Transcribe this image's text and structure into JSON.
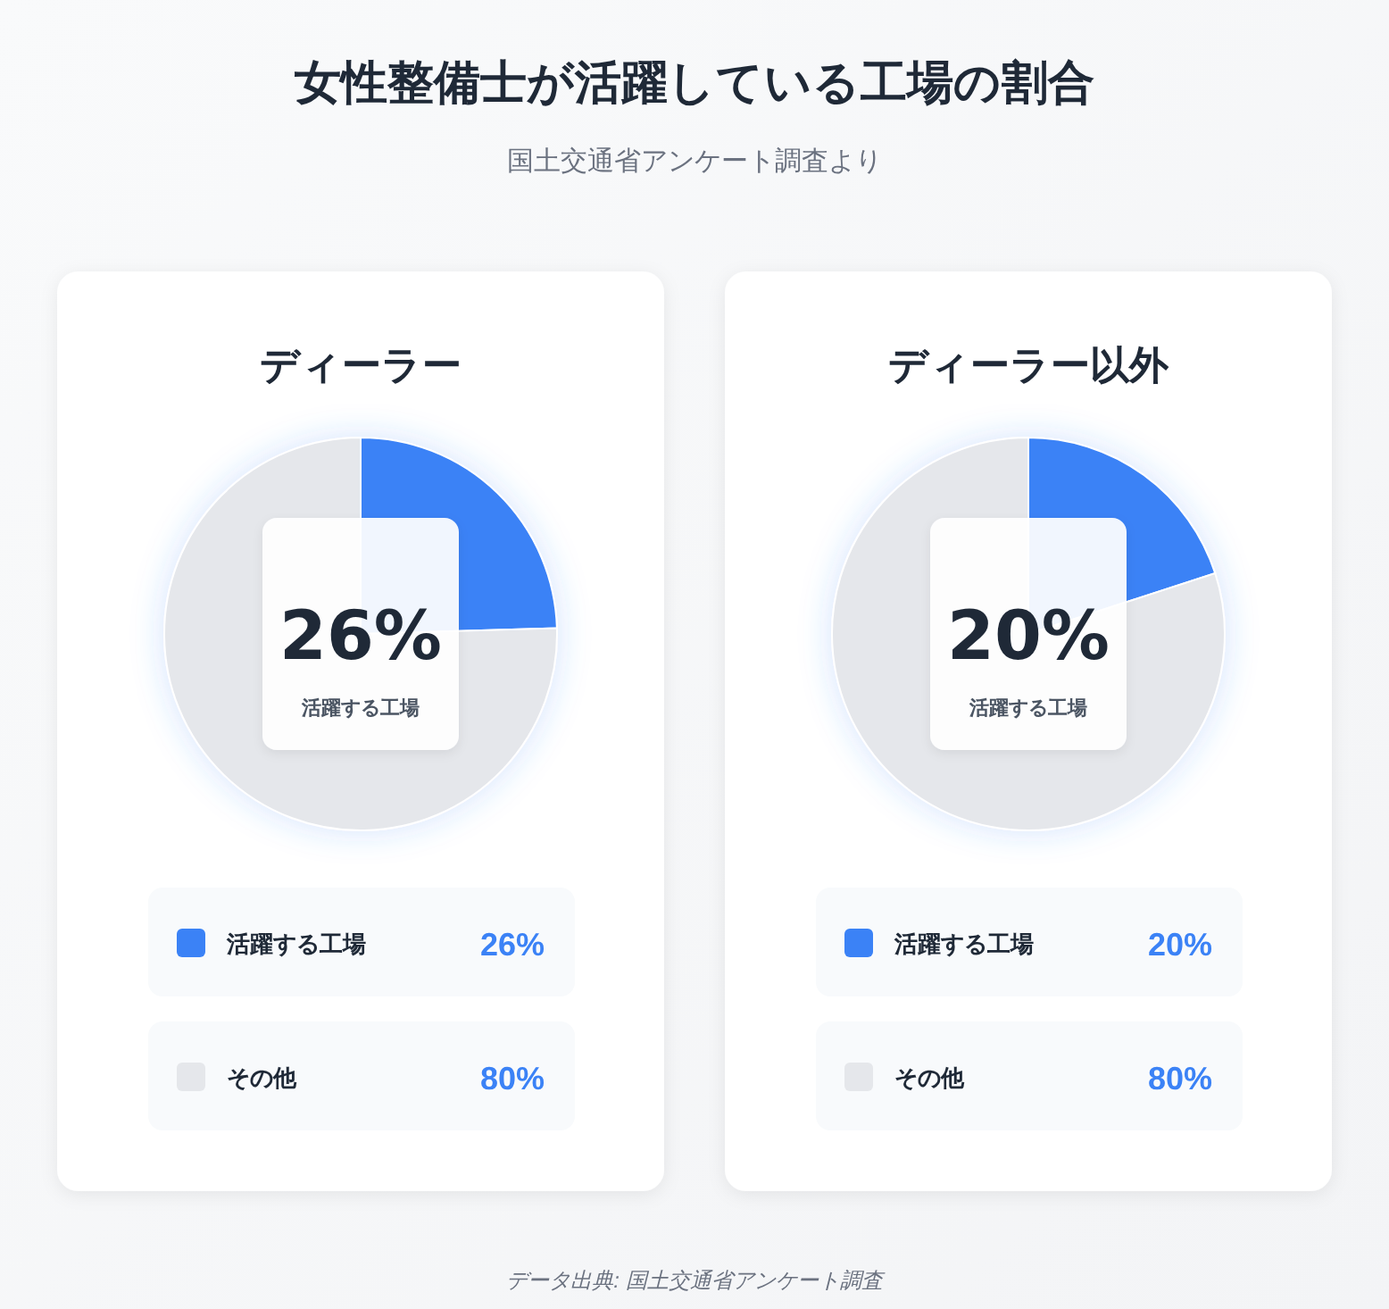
{
  "chart_data": [
    {
      "type": "other",
      "title": "女性整備士が活躍している工場の割合",
      "subtitle": "国土交通省アンケート調査より"
    },
    {
      "type": "pie",
      "title": "ディーラー",
      "categories": [
        "活躍する工場",
        "その他"
      ],
      "values": [
        26,
        80
      ],
      "value_labels": [
        "26%",
        "80%"
      ],
      "colors": [
        "#3b82f6",
        "#e5e7eb"
      ],
      "legend": "bottom"
    },
    {
      "type": "pie",
      "title": "ディーラー以外",
      "categories": [
        "活躍する工場",
        "その他"
      ],
      "values": [
        20,
        80
      ],
      "value_labels": [
        "20%",
        "80%"
      ],
      "colors": [
        "#3b82f6",
        "#e5e7eb"
      ],
      "legend": "bottom"
    },
    {
      "type": "other",
      "annotations": [
        "データ出典: 国土交通省アンケート調査"
      ]
    }
  ]
}
